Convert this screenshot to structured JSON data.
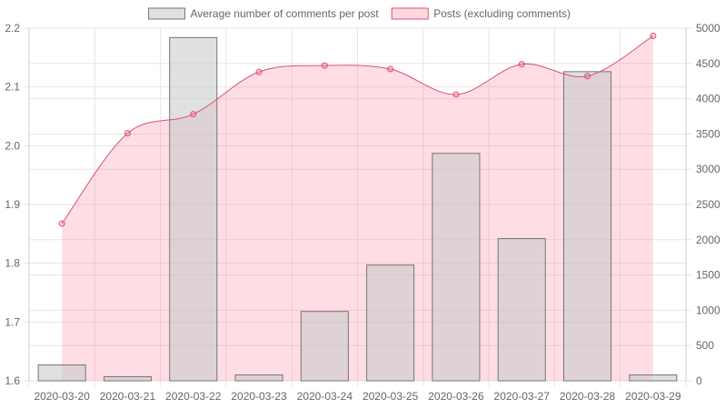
{
  "chart_data": {
    "type": "bar",
    "categories": [
      "2020-03-20",
      "2020-03-21",
      "2020-03-22",
      "2020-03-23",
      "2020-03-24",
      "2020-03-25",
      "2020-03-26",
      "2020-03-27",
      "2020-03-28",
      "2020-03-29"
    ],
    "series": [
      {
        "name": "Average number of comments per post",
        "type": "bar",
        "axis": "left",
        "values": [
          1.627,
          1.607,
          2.184,
          1.61,
          1.718,
          1.797,
          1.987,
          1.842,
          2.126,
          1.61
        ]
      },
      {
        "name": "Posts (excluding comments)",
        "type": "area",
        "axis": "right",
        "values": [
          2230,
          3510,
          3780,
          4380,
          4470,
          4420,
          4060,
          4490,
          4320,
          4890
        ]
      }
    ],
    "y_left": {
      "min": 1.6,
      "max": 2.2,
      "ticks": [
        "1.6",
        "1.7",
        "1.8",
        "1.9",
        "2.0",
        "2.1",
        "2.2"
      ]
    },
    "y_right": {
      "min": 0,
      "max": 5000,
      "ticks": [
        "0",
        "500",
        "1000",
        "1500",
        "2000",
        "2500",
        "3000",
        "3500",
        "4000",
        "4500",
        "5000"
      ]
    },
    "grid": true,
    "legend": "top-center",
    "colors": {
      "bar_fill": "rgba(201,203,207,0.6)",
      "bar_stroke": "#757575",
      "area_fill": "rgba(255,99,132,0.22)",
      "line_stroke": "#d9536f",
      "grid": "#e6e6e6",
      "text": "#666666"
    }
  }
}
